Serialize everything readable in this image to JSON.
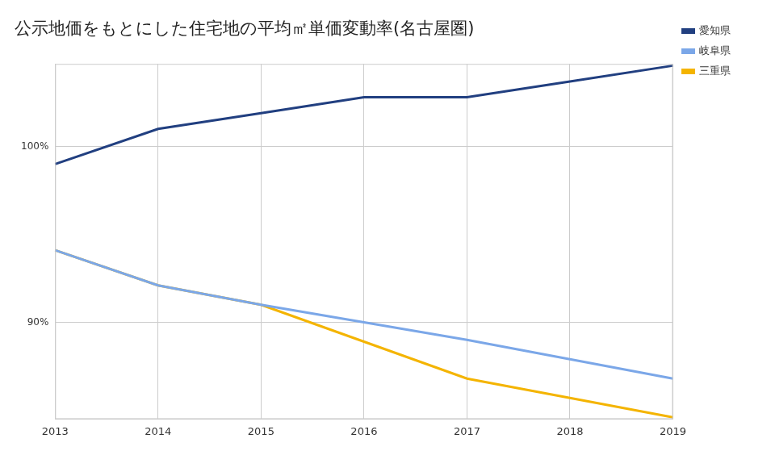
{
  "chart_data": {
    "type": "line",
    "title": "公示地価をもとにした住宅地の平均㎡単価変動率(名古屋圏)",
    "categories": [
      "2013",
      "2014",
      "2015",
      "2016",
      "2017",
      "2018",
      "2019"
    ],
    "series": [
      {
        "name": "愛知県",
        "color": "#213f80",
        "values": [
          99.0,
          101.0,
          101.9,
          102.8,
          102.8,
          103.7,
          104.6
        ]
      },
      {
        "name": "岐阜県",
        "color": "#7ba7e8",
        "values": [
          94.1,
          92.1,
          91.0,
          90.0,
          89.0,
          87.9,
          86.8
        ]
      },
      {
        "name": "三重県",
        "color": "#f4b400",
        "values": [
          94.1,
          92.1,
          91.0,
          88.9,
          86.8,
          85.7,
          84.6
        ]
      }
    ],
    "ylim": [
      84.5,
      104.7
    ],
    "yticks": [
      {
        "value": 90,
        "label": "90%"
      },
      {
        "value": 100,
        "label": "100%"
      }
    ],
    "grid": true,
    "legend": "right",
    "marker": "none",
    "line_style": "solid"
  }
}
